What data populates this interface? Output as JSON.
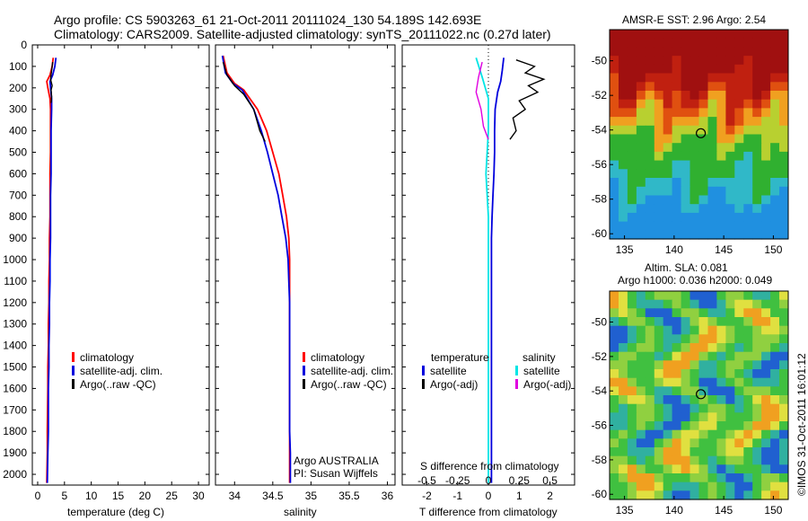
{
  "header": {
    "title_line1": "Argo profile: CS 5903263_61 21-Oct-2011 20111024_130 54.189S 142.693E",
    "title_line2": "Climatology: CARS2009. Satellite-adjusted climatology: synTS_20111022.nc (0.27d later)"
  },
  "colors": {
    "climatology": "#ff0000",
    "satellite": "#0000dd",
    "argo": "#000000",
    "salinity_sat": "#00e5e5",
    "salinity_argo": "#e000e0"
  },
  "chart_data": [
    {
      "type": "line",
      "xlabel": "temperature (deg C)",
      "xlim": [
        -1,
        32
      ],
      "ylim": [
        2050,
        0
      ],
      "xticks": [
        "0",
        "5",
        "10",
        "15",
        "20",
        "25",
        "30"
      ],
      "yticks": [
        "0",
        "100",
        "200",
        "300",
        "400",
        "500",
        "600",
        "700",
        "800",
        "900",
        "1000",
        "1100",
        "1200",
        "1300",
        "1400",
        "1500",
        "1600",
        "1700",
        "1800",
        "1900",
        "2000"
      ],
      "legend": [
        "climatology",
        "satellite-adj. clim.",
        "Argo(..raw -QC)"
      ],
      "series": [
        {
          "name": "climatology",
          "x": [
            2.9,
            2.7,
            2.3,
            1.7,
            1.9,
            2.3,
            2.4,
            2.4,
            2.4,
            2.3,
            2.3,
            2.3,
            2.2,
            2.2,
            2.1,
            2.1,
            2.0,
            2.0,
            1.9,
            1.9,
            1.8,
            1.8,
            1.7
          ],
          "y": [
            60,
            100,
            140,
            170,
            200,
            250,
            300,
            400,
            500,
            600,
            700,
            800,
            900,
            1000,
            1100,
            1200,
            1300,
            1400,
            1500,
            1600,
            1800,
            1900,
            2040
          ]
        },
        {
          "name": "satellite-adj. clim.",
          "x": [
            3.4,
            3.2,
            2.8,
            2.3,
            2.4,
            2.6,
            2.6,
            2.5,
            2.5,
            2.5,
            2.4,
            2.4,
            2.4,
            2.3,
            2.3,
            2.2,
            2.2,
            2.1,
            2.1,
            2.0,
            2.0,
            1.9,
            1.8
          ],
          "y": [
            60,
            100,
            140,
            170,
            200,
            250,
            300,
            400,
            500,
            600,
            700,
            800,
            900,
            1000,
            1100,
            1200,
            1300,
            1400,
            1500,
            1600,
            1800,
            1900,
            2040
          ]
        },
        {
          "name": "Argo(..raw -QC)",
          "x": [
            2.8,
            2.6,
            2.4,
            2.7,
            2.5,
            2.6,
            2.5
          ],
          "y": [
            80,
            120,
            160,
            190,
            210,
            240,
            270
          ]
        }
      ]
    },
    {
      "type": "line",
      "xlabel": "salinity",
      "xlim": [
        33.75,
        36.1
      ],
      "ylim": [
        2050,
        0
      ],
      "xticks": [
        "34",
        "34.5",
        "35",
        "35.5",
        "36"
      ],
      "legend": [
        "climatology",
        "satellite-adj. clim.",
        "Argo(..raw -QC)"
      ],
      "annotations": [
        "Argo AUSTRALIA",
        "PI: Susan Wijffels"
      ],
      "series": [
        {
          "name": "climatology",
          "x": [
            33.85,
            33.9,
            34.0,
            34.12,
            34.3,
            34.42,
            34.5,
            34.58,
            34.63,
            34.68,
            34.71,
            34.72,
            34.72,
            34.72,
            34.72,
            34.72,
            34.72,
            34.72,
            34.72
          ],
          "y": [
            50,
            130,
            180,
            210,
            300,
            400,
            500,
            600,
            700,
            800,
            900,
            1000,
            1100,
            1200,
            1400,
            1600,
            1800,
            1900,
            2040
          ]
        },
        {
          "name": "satellite-adj. clim.",
          "x": [
            33.84,
            33.88,
            33.98,
            34.1,
            34.25,
            34.35,
            34.43,
            34.5,
            34.57,
            34.62,
            34.67,
            34.7,
            34.71,
            34.72,
            34.72,
            34.72,
            34.72,
            34.73,
            34.73
          ],
          "y": [
            50,
            130,
            180,
            210,
            300,
            400,
            500,
            600,
            700,
            800,
            900,
            1000,
            1100,
            1200,
            1400,
            1600,
            1800,
            1900,
            2040
          ]
        },
        {
          "name": "Argo(..raw -QC)",
          "x": [
            33.85,
            33.9,
            34.0,
            34.12,
            34.25,
            34.33,
            34.4
          ],
          "y": [
            80,
            140,
            190,
            230,
            300,
            400,
            450
          ]
        }
      ]
    },
    {
      "type": "line",
      "xlabel": "T difference from climatology",
      "xlabel_top": "S difference from climatology",
      "xlim": [
        -2.8,
        2.8
      ],
      "ylim": [
        2050,
        0
      ],
      "xticks_T": [
        "-2",
        "-1",
        "0",
        "1",
        "2"
      ],
      "xticks_S": [
        "-0.5",
        "-0.25",
        "0",
        "0.25",
        "0.5"
      ],
      "legend_headers": [
        "temperature",
        "salinity"
      ],
      "legend": [
        "satellite",
        "Argo(-adj)",
        "satellite",
        "Argo(-adj)"
      ],
      "series": [
        {
          "name": "satellite",
          "x": [
            0.5,
            0.45,
            0.4,
            0.3,
            0.22,
            0.2,
            0.2,
            0.18,
            0.15,
            0.12,
            0.1,
            0.1,
            0.1,
            0.1,
            0.1,
            0.1,
            0.1
          ],
          "y": [
            60,
            120,
            170,
            220,
            300,
            400,
            500,
            600,
            700,
            800,
            900,
            1000,
            1200,
            1400,
            1600,
            1800,
            2040
          ]
        },
        {
          "name": "Argo(-adj)",
          "x": [
            0.9,
            1.5,
            1.2,
            1.8,
            1.3,
            1.6,
            1.0,
            1.2,
            0.8,
            0.9,
            0.7
          ],
          "y": [
            70,
            100,
            130,
            160,
            190,
            220,
            260,
            300,
            340,
            400,
            440
          ]
        },
        {
          "name": "satellite",
          "x": [
            -0.1,
            -0.05,
            0.0,
            0.0,
            -0.02,
            0.0,
            0.0,
            0.0,
            0.0,
            0.0,
            0.0,
            0.0,
            0.0
          ],
          "y": [
            60,
            150,
            250,
            400,
            600,
            800,
            1000,
            1200,
            1400,
            1600,
            1800,
            1900,
            2040
          ]
        },
        {
          "name": "Argo(-adj)",
          "x": [
            -0.05,
            -0.08,
            -0.1,
            -0.06,
            -0.04,
            0.0
          ],
          "y": [
            80,
            150,
            220,
            300,
            380,
            440
          ]
        }
      ]
    },
    {
      "type": "heatmap",
      "title": "AMSR-E SST: 2.96 Argo: 2.54",
      "xticks": [
        "135",
        "140",
        "145",
        "150"
      ],
      "yticks": [
        "-50",
        "-52",
        "-54",
        "-56",
        "-58",
        "-60"
      ],
      "xlim": [
        133.5,
        151.5
      ],
      "ylim": [
        -60.3,
        -48.2
      ],
      "marker": {
        "lon": 142.693,
        "lat": -54.189
      }
    },
    {
      "type": "heatmap",
      "title_line1": "Altim. SLA: 0.081",
      "title_line2": "Argo h1000: 0.036 h2000: 0.049",
      "xticks": [
        "135",
        "140",
        "145",
        "150"
      ],
      "yticks": [
        "-50",
        "-52",
        "-54",
        "-56",
        "-58",
        "-60"
      ],
      "xlim": [
        133.5,
        151.5
      ],
      "ylim": [
        -60.3,
        -48.2
      ],
      "marker": {
        "lon": 142.693,
        "lat": -54.189
      },
      "side_label": "©IMOS 31-Oct-2011 16:01:12"
    }
  ]
}
